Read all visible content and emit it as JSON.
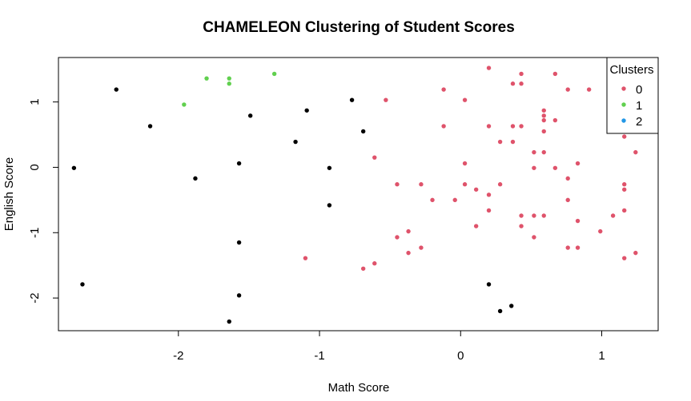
{
  "chart_data": {
    "type": "scatter",
    "title": "CHAMELEON Clustering of Student Scores",
    "xlabel": "Math Score",
    "ylabel": "English Score",
    "xlim": [
      -2.85,
      1.4
    ],
    "ylim": [
      -2.5,
      1.68
    ],
    "xticks": [
      -2,
      -1,
      0,
      1
    ],
    "yticks": [
      -2,
      -1,
      0,
      1
    ],
    "grid": false,
    "legend": {
      "title": "Clusters",
      "placement": "top-right",
      "entries": [
        "0",
        "1",
        "2"
      ]
    },
    "series": [
      {
        "name": "0",
        "color": "#DF536B",
        "points": [
          [
            -0.53,
            1.03
          ],
          [
            -0.12,
            1.19
          ],
          [
            0.03,
            1.03
          ],
          [
            0.2,
            1.52
          ],
          [
            0.37,
            1.28
          ],
          [
            0.43,
            1.43
          ],
          [
            0.43,
            1.28
          ],
          [
            0.67,
            1.43
          ],
          [
            0.76,
            1.19
          ],
          [
            0.91,
            1.19
          ],
          [
            0.59,
            0.87
          ],
          [
            0.59,
            0.79
          ],
          [
            0.59,
            0.72
          ],
          [
            0.67,
            0.72
          ],
          [
            -0.12,
            0.63
          ],
          [
            0.2,
            0.63
          ],
          [
            0.37,
            0.63
          ],
          [
            0.43,
            0.63
          ],
          [
            0.59,
            0.55
          ],
          [
            0.28,
            0.39
          ],
          [
            0.37,
            0.39
          ],
          [
            1.16,
            0.47
          ],
          [
            0.52,
            0.23
          ],
          [
            0.59,
            0.23
          ],
          [
            1.24,
            0.23
          ],
          [
            -0.61,
            0.15
          ],
          [
            0.03,
            0.06
          ],
          [
            0.83,
            0.06
          ],
          [
            0.52,
            -0.01
          ],
          [
            0.67,
            -0.01
          ],
          [
            -0.45,
            -0.26
          ],
          [
            -0.28,
            -0.26
          ],
          [
            0.03,
            -0.26
          ],
          [
            0.28,
            -0.26
          ],
          [
            0.76,
            -0.17
          ],
          [
            1.16,
            -0.26
          ],
          [
            1.16,
            -0.34
          ],
          [
            0.11,
            -0.34
          ],
          [
            0.2,
            -0.42
          ],
          [
            -0.2,
            -0.5
          ],
          [
            -0.04,
            -0.5
          ],
          [
            0.76,
            -0.5
          ],
          [
            0.2,
            -0.66
          ],
          [
            0.43,
            -0.74
          ],
          [
            0.52,
            -0.74
          ],
          [
            0.59,
            -0.74
          ],
          [
            1.08,
            -0.74
          ],
          [
            1.16,
            -0.66
          ],
          [
            0.83,
            -0.82
          ],
          [
            0.11,
            -0.9
          ],
          [
            0.43,
            -0.9
          ],
          [
            -0.37,
            -0.98
          ],
          [
            0.99,
            -0.98
          ],
          [
            -0.45,
            -1.07
          ],
          [
            0.52,
            -1.07
          ],
          [
            -0.28,
            -1.23
          ],
          [
            0.76,
            -1.23
          ],
          [
            0.83,
            -1.23
          ],
          [
            -0.37,
            -1.31
          ],
          [
            1.24,
            -1.31
          ],
          [
            -1.1,
            -1.39
          ],
          [
            1.16,
            -1.39
          ],
          [
            -0.61,
            -1.47
          ],
          [
            -0.69,
            -1.55
          ]
        ]
      },
      {
        "name": "1",
        "color": "#61D04F",
        "points": [
          [
            -1.8,
            1.36
          ],
          [
            -1.64,
            1.36
          ],
          [
            -1.64,
            1.28
          ],
          [
            -1.32,
            1.43
          ],
          [
            -1.96,
            0.96
          ]
        ]
      },
      {
        "name": "2",
        "color": "#2297E6",
        "points": []
      },
      {
        "name": "",
        "color": "#000000",
        "points": [
          [
            -2.44,
            1.19
          ],
          [
            -0.77,
            1.03
          ],
          [
            -1.09,
            0.87
          ],
          [
            -1.49,
            0.79
          ],
          [
            -2.2,
            0.63
          ],
          [
            -0.69,
            0.55
          ],
          [
            -1.17,
            0.39
          ],
          [
            -1.57,
            0.06
          ],
          [
            -2.74,
            -0.01
          ],
          [
            -0.93,
            -0.01
          ],
          [
            -1.88,
            -0.17
          ],
          [
            -0.93,
            -0.58
          ],
          [
            -1.57,
            -1.15
          ],
          [
            -2.68,
            -1.79
          ],
          [
            0.2,
            -1.79
          ],
          [
            -1.57,
            -1.96
          ],
          [
            0.36,
            -2.12
          ],
          [
            0.28,
            -2.2
          ],
          [
            -1.64,
            -2.36
          ]
        ]
      }
    ]
  }
}
